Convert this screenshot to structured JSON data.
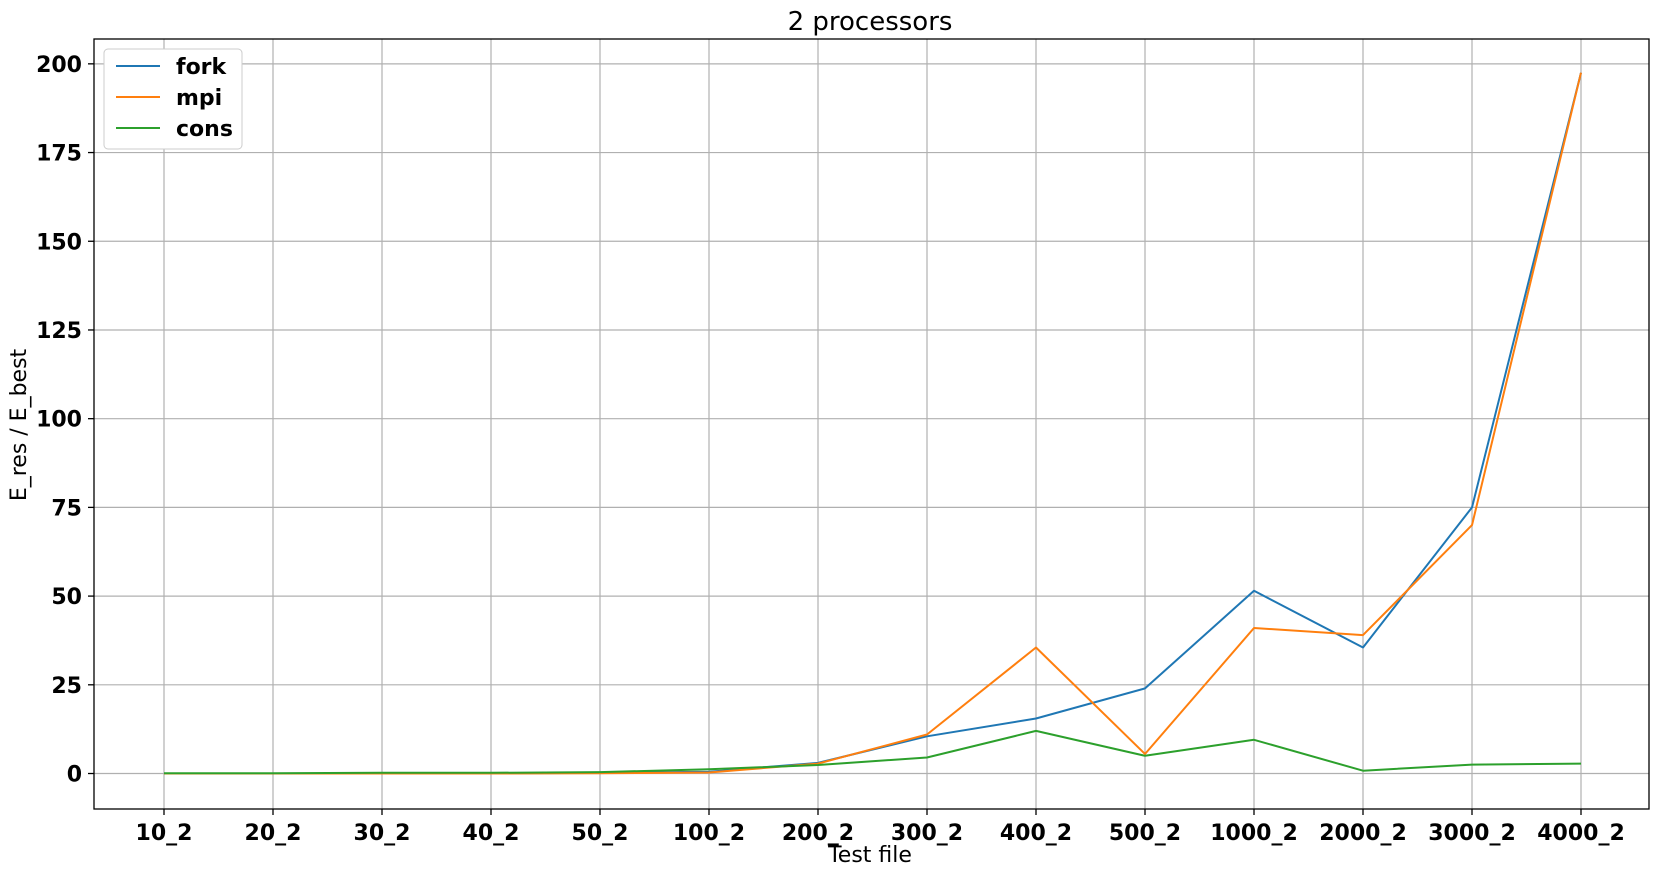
{
  "chart_data": {
    "type": "line",
    "title": "2 processors",
    "xlabel": "Test file",
    "ylabel": "E_res / E_best",
    "categories": [
      "10_2",
      "20_2",
      "30_2",
      "40_2",
      "50_2",
      "100_2",
      "200_2",
      "300_2",
      "400_2",
      "500_2",
      "1000_2",
      "2000_2",
      "3000_2",
      "4000_2"
    ],
    "ylim": [
      -10,
      207
    ],
    "yticks": [
      0,
      25,
      50,
      75,
      100,
      125,
      150,
      175,
      200
    ],
    "grid": true,
    "legend_position": "upper-left",
    "series": [
      {
        "name": "fork",
        "color": "#1f77b4",
        "values": [
          0,
          0,
          0,
          0,
          0.2,
          0.5,
          3,
          10.5,
          15.5,
          24,
          51.5,
          35.5,
          75,
          197.5
        ]
      },
      {
        "name": "mpi",
        "color": "#ff7f0e",
        "values": [
          0,
          0,
          0,
          0,
          0.1,
          0.3,
          2.8,
          11,
          35.5,
          5.5,
          41,
          39,
          70,
          197.5
        ]
      },
      {
        "name": "cons",
        "color": "#2ca02c",
        "values": [
          0.1,
          0.1,
          0.2,
          0.2,
          0.4,
          1.2,
          2.4,
          4.5,
          12,
          5,
          9.5,
          0.8,
          2.5,
          2.8
        ]
      }
    ]
  }
}
